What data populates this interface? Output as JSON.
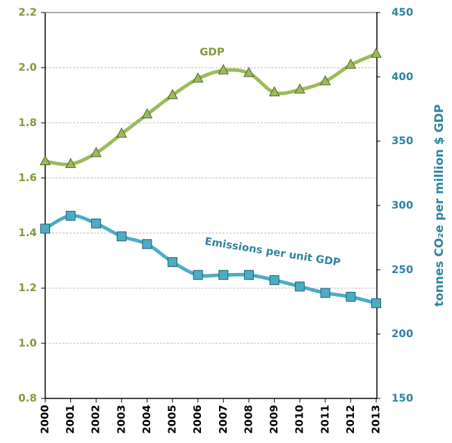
{
  "chart_data": {
    "type": "line",
    "categories": [
      "2000",
      "2001",
      "2002",
      "2003",
      "2004",
      "2005",
      "2006",
      "2007",
      "2008",
      "2009",
      "2010",
      "2011",
      "2012",
      "2013"
    ],
    "series": [
      {
        "name": "GDP",
        "color": "#9bbb59",
        "marker": "triangle",
        "axis": "y",
        "values": [
          1.66,
          1.65,
          1.69,
          1.76,
          1.83,
          1.9,
          1.96,
          1.99,
          1.98,
          1.91,
          1.92,
          1.95,
          2.01,
          2.05
        ]
      },
      {
        "name": "Emissions per unit GDP",
        "color": "#4bacc6",
        "marker": "square",
        "axis": "y2",
        "values": [
          282,
          292,
          286,
          276,
          270,
          256,
          246,
          246,
          246,
          242,
          237,
          232,
          229,
          224
        ]
      }
    ],
    "ylim": [
      0.8,
      2.2
    ],
    "yticks": [
      0.8,
      {
        "value": 1,
        "label": "1.0"
      },
      1.2,
      1.4,
      1.6,
      1.8,
      {
        "value": 2,
        "label": "2.0"
      },
      2.2
    ],
    "y2lim": [
      150,
      450
    ],
    "y2ticks": [
      150,
      200,
      250,
      300,
      350,
      400,
      450
    ],
    "y2label": "tonnes CO₂e per million $ GDP",
    "grid": true
  }
}
